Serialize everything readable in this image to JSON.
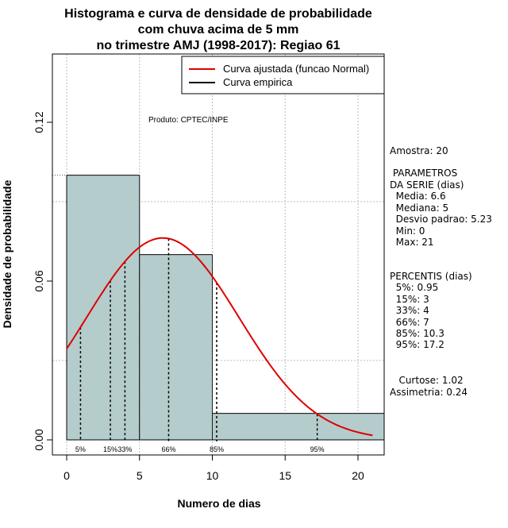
{
  "chart_data": {
    "type": "bar",
    "title_lines": [
      "Histograma e curva de densidade de probabilidade",
      "com chuva acima de 5 mm",
      "no trimestre AMJ (1998-2017): Regiao 61"
    ],
    "xlabel": "Numero de dias",
    "ylabel": "Densidade de probabilidade",
    "xlim": [
      -1,
      22
    ],
    "ylim": [
      0,
      0.15
    ],
    "x_ticks": [
      0,
      5,
      10,
      15,
      20
    ],
    "y_ticks": [
      0.0,
      0.06,
      0.12
    ],
    "y_tick_labels": [
      "0.00",
      "0.06",
      "0.12"
    ],
    "grid": true,
    "bins": [
      {
        "from": 0,
        "to": 5,
        "density": 0.1
      },
      {
        "from": 5,
        "to": 10,
        "density": 0.07
      },
      {
        "from": 10,
        "to": 22,
        "density": 0.01
      }
    ],
    "fitted_curve": {
      "name": "Curva ajustada (funcao Normal)",
      "color": "#dd0000",
      "mean": 6.6,
      "sd": 5.23,
      "x_from": 0,
      "x_to": 21
    },
    "empirical_curve_name": "Curva empirica",
    "percentile_lines": [
      {
        "label": "5%",
        "x": 0.95
      },
      {
        "label": "15%",
        "x": 3
      },
      {
        "label": "33%",
        "x": 4
      },
      {
        "label": "66%",
        "x": 7
      },
      {
        "label": "85%",
        "x": 10.3
      },
      {
        "label": "95%",
        "x": 17.2
      }
    ],
    "legend_position": "top-right",
    "annotation": "Produto: CPTEC/INPE",
    "colors": {
      "bars": "#b5cccc",
      "curve": "#dd0000",
      "grid": "#bbbbbb"
    }
  },
  "side_panel": {
    "amostra": "Amostra: 20",
    "parametros_title": " PARAMETROS",
    "parametros_subtitle": "DA SERIE (dias)",
    "media": "  Media: 6.6",
    "mediana": "  Mediana: 5",
    "desvio": "  Desvio padrao: 5.23",
    "min": "  Min: 0",
    "max": "  Max: 21",
    "percentis_title": "PERCENTIS (dias)",
    "p5": "  5%: 0.95",
    "p15": "  15%: 3",
    "p33": "  33%: 4",
    "p66": "  66%: 7",
    "p85": "  85%: 10.3",
    "p95": "  95%: 17.2",
    "curtose": "   Curtose: 1.02",
    "assimetria": "Assimetria: 0.24"
  }
}
